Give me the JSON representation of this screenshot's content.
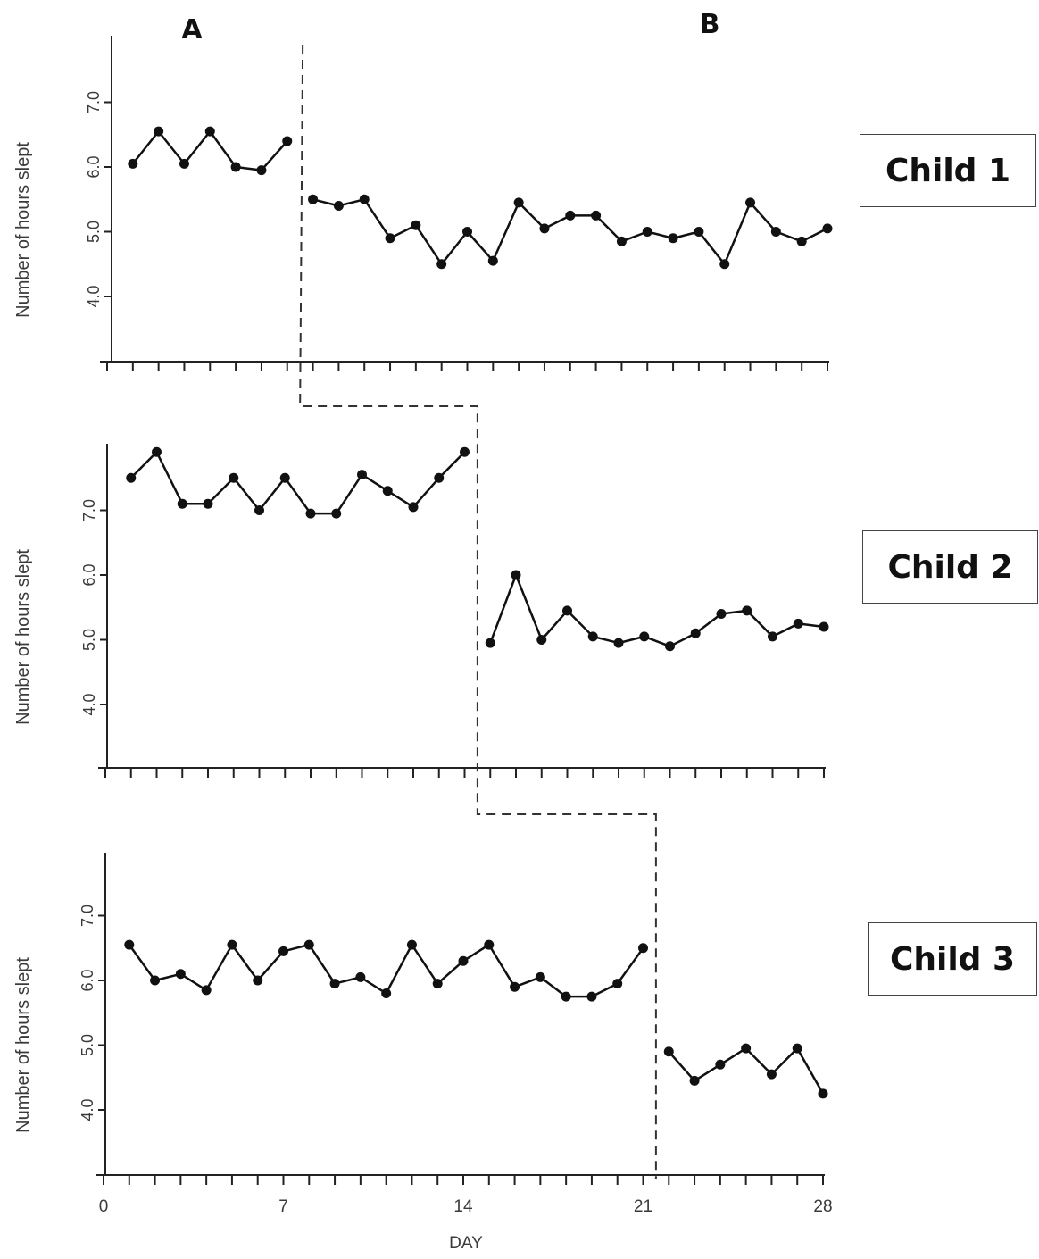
{
  "phase_labels": [
    "A",
    "B"
  ],
  "x_axis_label": "DAY",
  "boxes": [
    "Child 1",
    "Child 2",
    "Child 3"
  ],
  "chart_data": [
    {
      "type": "line",
      "ylabel": "Number of hours slept",
      "ylim": [
        3,
        8
      ],
      "xlim": [
        0,
        28
      ],
      "yticks": [
        "4.0",
        "5.0",
        "6.0",
        "7.0"
      ],
      "phase_change_after_day": 7.5,
      "series": [
        {
          "x": [
            1,
            2,
            3,
            4,
            5,
            6,
            7
          ],
          "values": [
            6.05,
            6.55,
            6.05,
            6.55,
            6.0,
            5.95,
            6.4
          ]
        },
        {
          "x": [
            8,
            9,
            10,
            11,
            12,
            13,
            14,
            15,
            16,
            17,
            18,
            19,
            20,
            21,
            22,
            23,
            24,
            25,
            26,
            27,
            28
          ],
          "values": [
            5.5,
            5.4,
            5.5,
            4.9,
            5.1,
            4.5,
            5.0,
            4.55,
            5.45,
            5.05,
            5.25,
            5.25,
            4.85,
            5.0,
            4.9,
            5.0,
            4.5,
            5.45,
            5.0,
            4.85,
            5.05
          ]
        }
      ]
    },
    {
      "type": "line",
      "ylabel": "Number of hours slept",
      "ylim": [
        3,
        8
      ],
      "xlim": [
        0,
        28
      ],
      "yticks": [
        "4.0",
        "5.0",
        "6.0",
        "7.0"
      ],
      "phase_change_after_day": 14.5,
      "series": [
        {
          "x": [
            1,
            2,
            3,
            4,
            5,
            6,
            7,
            8,
            9,
            10,
            11,
            12,
            13,
            14
          ],
          "values": [
            7.5,
            7.9,
            7.1,
            7.1,
            7.5,
            7.0,
            7.5,
            6.95,
            6.95,
            7.55,
            7.3,
            7.05,
            7.5,
            7.9
          ]
        },
        {
          "x": [
            15,
            16,
            17,
            18,
            19,
            20,
            21,
            22,
            23,
            24,
            25,
            26,
            27,
            28
          ],
          "values": [
            4.95,
            6.0,
            5.0,
            5.45,
            5.05,
            4.95,
            5.05,
            4.9,
            5.1,
            5.4,
            5.45,
            5.05,
            5.25,
            5.2
          ]
        }
      ]
    },
    {
      "type": "line",
      "ylabel": "Number of hours slept",
      "ylim": [
        3,
        8
      ],
      "xlim": [
        0,
        28
      ],
      "xticks": [
        "0",
        "7",
        "14",
        "21",
        "28"
      ],
      "yticks": [
        "4.0",
        "5.0",
        "6.0",
        "7.0"
      ],
      "phase_change_after_day": 21.5,
      "series": [
        {
          "x": [
            1,
            2,
            3,
            4,
            5,
            6,
            7,
            8,
            9,
            10,
            11,
            12,
            13,
            14,
            15,
            16,
            17,
            18,
            19,
            20,
            21
          ],
          "values": [
            6.55,
            6.0,
            6.1,
            5.85,
            6.55,
            6.0,
            6.45,
            6.55,
            5.95,
            6.05,
            5.8,
            6.55,
            5.95,
            6.3,
            6.55,
            5.9,
            6.05,
            5.75,
            5.75,
            5.95,
            6.5
          ]
        },
        {
          "x": [
            22,
            23,
            24,
            25,
            26,
            27,
            28
          ],
          "values": [
            4.9,
            4.45,
            4.7,
            4.95,
            4.55,
            4.95,
            4.25
          ]
        }
      ]
    }
  ]
}
